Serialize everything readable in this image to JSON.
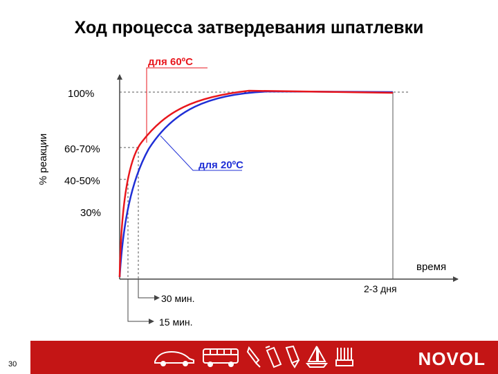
{
  "title": "Ход процесса затвердевания шпатлевки",
  "page_number": "30",
  "brand": {
    "name": "NOVOL"
  },
  "colors": {
    "red": "#e8161c",
    "blue": "#1f2fd6",
    "footer": "#c41515",
    "guide": "#444444"
  },
  "footer_icons": [
    "car-icon",
    "bus-icon",
    "spray-gun-icon",
    "spray-can-icon",
    "paint-brush-icon",
    "sailboat-icon",
    "brush-bristles-icon"
  ],
  "chart_data": {
    "type": "line",
    "title": "Ход процесса затвердевания шпатлевки",
    "ylabel": "% реакции",
    "xlabel": "время",
    "y_tick_labels": [
      {
        "label": "100%",
        "color": "#000000"
      },
      {
        "label": "60-70%",
        "color": "#000000"
      },
      {
        "label": "40-50%",
        "color": "#000000"
      },
      {
        "label": "30%",
        "color": "#000000"
      }
    ],
    "x_tick_labels": [
      "15 мин.",
      "30 мин.",
      "2-3 дня"
    ],
    "series": [
      {
        "name": "для 60ºC",
        "color": "#e8161c"
      },
      {
        "name": "для 20ºC",
        "color": "#1f2fd6"
      }
    ],
    "grid": false
  }
}
